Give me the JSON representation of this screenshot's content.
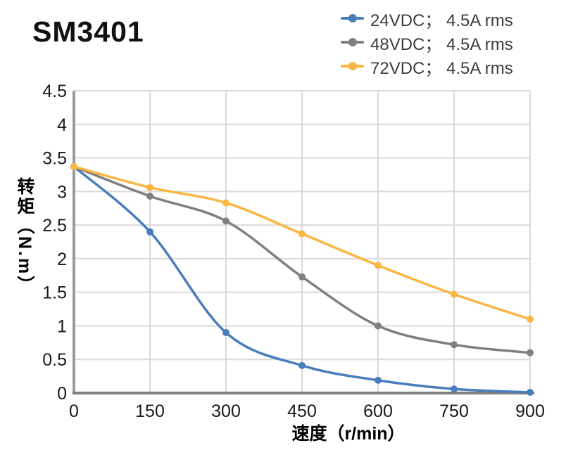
{
  "header": {
    "title": "SM3401"
  },
  "chart_data": {
    "type": "line",
    "title": "SM3401",
    "x": [
      0,
      150,
      300,
      450,
      600,
      750,
      900
    ],
    "xlabel": "速度（r/min）",
    "ylabel": "转矩（N.m）",
    "xlim": [
      0,
      900
    ],
    "ylim": [
      0,
      4.5
    ],
    "x_tick_step": 150,
    "y_tick_step": 0.5,
    "grid": true,
    "legend_position": "top-right",
    "grid_color": "#D9D9D9",
    "y_axis_color": "#9B9B9B",
    "x_axis_color": "#808080",
    "tick_label_color": "#1a1a1a",
    "legend_text_color": "#3d3d3d",
    "series": [
      {
        "name": "24VDC； 4.5A rms",
        "color": "#4A7EBB",
        "values": [
          3.37,
          2.4,
          0.9,
          0.41,
          0.19,
          0.06,
          0.01
        ]
      },
      {
        "name": "48VDC； 4.5A rms",
        "color": "#7F7F7F",
        "values": [
          3.37,
          2.93,
          2.56,
          1.73,
          1.0,
          0.72,
          0.6
        ]
      },
      {
        "name": "72VDC； 4.5A rms",
        "color": "#F9B642",
        "values": [
          3.37,
          3.06,
          2.83,
          2.37,
          1.9,
          1.47,
          1.1
        ]
      }
    ]
  }
}
